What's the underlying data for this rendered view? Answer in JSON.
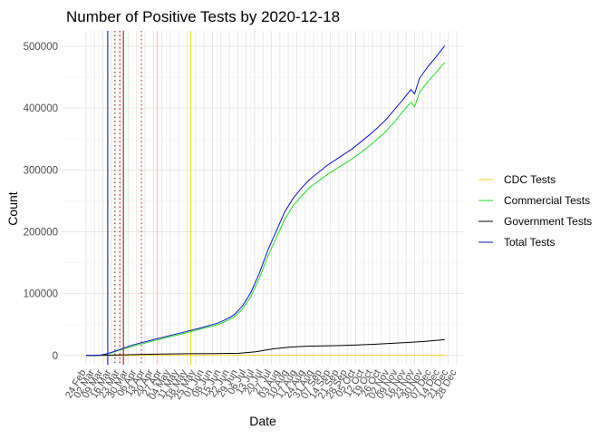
{
  "chart_data": {
    "type": "line",
    "title": "Number of Positive Tests by  2020-12-18",
    "xlabel": "Date",
    "ylabel": "Count",
    "grid": true,
    "legend_position": "right",
    "x_axis": {
      "start_date": "2020-02-24",
      "end_date": "2020-12-28",
      "tick_labels": [
        "24 Feb",
        "02 Mar",
        "09 Mar",
        "16 Mar",
        "23 Mar",
        "30 Mar",
        "06 Apr",
        "13 Apr",
        "20 Apr",
        "27 Apr",
        "04 May",
        "11 May",
        "18 May",
        "25 May",
        "01 Jun",
        "08 Jun",
        "15 Jun",
        "22 Jun",
        "29 Jun",
        "06 Jul",
        "13 Jul",
        "20 Jul",
        "27 Jul",
        "03 Aug",
        "10 Aug",
        "17 Aug",
        "24 Aug",
        "31 Aug",
        "07 Sep",
        "14 Sep",
        "21 Sep",
        "28 Sep",
        "05 Oct",
        "12 Oct",
        "19 Oct",
        "26 Oct",
        "02 Nov",
        "09 Nov",
        "16 Nov",
        "23 Nov",
        "30 Nov",
        "07 Dec",
        "14 Dec",
        "21 Dec",
        "28 Dec"
      ]
    },
    "y_axis": {
      "ylim": [
        -15000,
        525000
      ],
      "ticks": [
        0,
        100000,
        200000,
        300000,
        400000,
        500000
      ],
      "tick_labels": [
        "0",
        "100000",
        "200000",
        "300000",
        "400000",
        "500000"
      ]
    },
    "series": [
      {
        "name": "CDC Tests",
        "color": "#FFD21F",
        "points": [
          [
            "2020-02-24",
            0
          ],
          [
            "2020-03-15",
            50
          ],
          [
            "2020-05-01",
            150
          ],
          [
            "2020-08-01",
            200
          ],
          [
            "2020-12-18",
            250
          ]
        ]
      },
      {
        "name": "Commercial Tests",
        "color": "#22DD22",
        "points": [
          [
            "2020-02-24",
            0
          ],
          [
            "2020-03-06",
            0
          ],
          [
            "2020-03-13",
            2500
          ],
          [
            "2020-03-20",
            6500
          ],
          [
            "2020-03-27",
            11000
          ],
          [
            "2020-04-03",
            15000
          ],
          [
            "2020-04-17",
            22000
          ],
          [
            "2020-05-01",
            29000
          ],
          [
            "2020-05-15",
            35500
          ],
          [
            "2020-05-29",
            42500
          ],
          [
            "2020-06-12",
            49500
          ],
          [
            "2020-06-19",
            55000
          ],
          [
            "2020-06-26",
            62000
          ],
          [
            "2020-07-03",
            75000
          ],
          [
            "2020-07-10",
            95000
          ],
          [
            "2020-07-17",
            125000
          ],
          [
            "2020-07-24",
            160000
          ],
          [
            "2020-07-31",
            190000
          ],
          [
            "2020-08-07",
            220000
          ],
          [
            "2020-08-14",
            242000
          ],
          [
            "2020-08-21",
            258000
          ],
          [
            "2020-08-28",
            272000
          ],
          [
            "2020-09-04",
            282000
          ],
          [
            "2020-09-11",
            292000
          ],
          [
            "2020-09-18",
            301000
          ],
          [
            "2020-09-25",
            309000
          ],
          [
            "2020-10-02",
            318000
          ],
          [
            "2020-10-09",
            328000
          ],
          [
            "2020-10-16",
            338000
          ],
          [
            "2020-10-23",
            350000
          ],
          [
            "2020-10-30",
            362000
          ],
          [
            "2020-11-06",
            377000
          ],
          [
            "2020-11-13",
            394000
          ],
          [
            "2020-11-20",
            410000
          ],
          [
            "2020-11-23",
            402000
          ],
          [
            "2020-11-27",
            425000
          ],
          [
            "2020-12-04",
            443000
          ],
          [
            "2020-12-11",
            458000
          ],
          [
            "2020-12-18",
            474000
          ]
        ]
      },
      {
        "name": "Government Tests",
        "color": "#000000",
        "points": [
          [
            "2020-02-24",
            0
          ],
          [
            "2020-03-10",
            200
          ],
          [
            "2020-03-24",
            800
          ],
          [
            "2020-04-07",
            1500
          ],
          [
            "2020-04-28",
            2200
          ],
          [
            "2020-05-19",
            2800
          ],
          [
            "2020-06-09",
            3000
          ],
          [
            "2020-06-30",
            3500
          ],
          [
            "2020-07-14",
            6000
          ],
          [
            "2020-07-28",
            10500
          ],
          [
            "2020-08-11",
            13500
          ],
          [
            "2020-08-25",
            15000
          ],
          [
            "2020-09-08",
            15500
          ],
          [
            "2020-09-22",
            16000
          ],
          [
            "2020-10-06",
            17000
          ],
          [
            "2020-10-20",
            18000
          ],
          [
            "2020-11-03",
            19500
          ],
          [
            "2020-11-17",
            21000
          ],
          [
            "2020-12-01",
            22500
          ],
          [
            "2020-12-18",
            25500
          ]
        ]
      },
      {
        "name": "Total Tests",
        "color": "#1010CC",
        "points": [
          [
            "2020-02-24",
            0
          ],
          [
            "2020-03-06",
            0
          ],
          [
            "2020-03-13",
            3000
          ],
          [
            "2020-03-20",
            7500
          ],
          [
            "2020-03-27",
            12500
          ],
          [
            "2020-04-03",
            17000
          ],
          [
            "2020-04-17",
            24000
          ],
          [
            "2020-05-01",
            31000
          ],
          [
            "2020-05-15",
            37500
          ],
          [
            "2020-05-29",
            44500
          ],
          [
            "2020-06-12",
            52000
          ],
          [
            "2020-06-19",
            58000
          ],
          [
            "2020-06-26",
            65500
          ],
          [
            "2020-07-03",
            80000
          ],
          [
            "2020-07-10",
            102000
          ],
          [
            "2020-07-17",
            133000
          ],
          [
            "2020-07-24",
            170000
          ],
          [
            "2020-07-31",
            201000
          ],
          [
            "2020-08-07",
            232000
          ],
          [
            "2020-08-14",
            254000
          ],
          [
            "2020-08-21",
            271000
          ],
          [
            "2020-08-28",
            285000
          ],
          [
            "2020-09-04",
            296000
          ],
          [
            "2020-09-11",
            307000
          ],
          [
            "2020-09-18",
            316000
          ],
          [
            "2020-09-25",
            325000
          ],
          [
            "2020-10-02",
            334000
          ],
          [
            "2020-10-09",
            345000
          ],
          [
            "2020-10-16",
            356000
          ],
          [
            "2020-10-23",
            368000
          ],
          [
            "2020-10-30",
            381000
          ],
          [
            "2020-11-06",
            397000
          ],
          [
            "2020-11-13",
            413000
          ],
          [
            "2020-11-20",
            430000
          ],
          [
            "2020-11-23",
            423000
          ],
          [
            "2020-11-27",
            448000
          ],
          [
            "2020-12-04",
            467000
          ],
          [
            "2020-12-11",
            483000
          ],
          [
            "2020-12-18",
            501000
          ]
        ]
      }
    ],
    "reference_lines": [
      {
        "date": "2020-03-13",
        "color": "#0000FF",
        "style": "solid"
      },
      {
        "date": "2020-03-19",
        "color": "#8B0000",
        "style": "dotted"
      },
      {
        "date": "2020-03-23",
        "color": "#8B0000",
        "style": "dotted"
      },
      {
        "date": "2020-03-26",
        "color": "#AA0000",
        "style": "solid"
      },
      {
        "date": "2020-04-10",
        "color": "#CC2222",
        "style": "dotted"
      },
      {
        "date": "2020-04-23",
        "color": "#FFB6B6",
        "style": "solid"
      },
      {
        "date": "2020-05-21",
        "color": "#FFD21F",
        "style": "solid"
      }
    ]
  }
}
